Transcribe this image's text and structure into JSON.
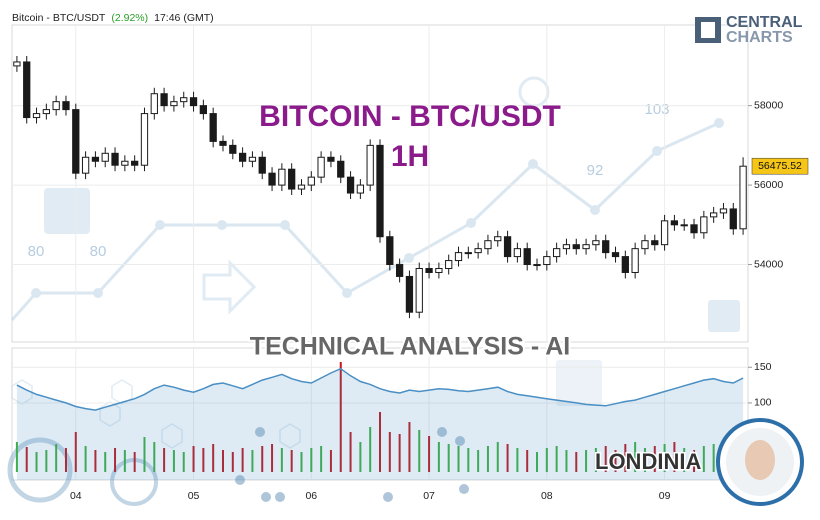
{
  "header": {
    "symbol": "Bitcoin - BTC/USDT",
    "change": "(2.92%)",
    "time": "17:46 (GMT)"
  },
  "logo": {
    "line1": "CENTRAL",
    "line2": "CHARTS"
  },
  "watermark": {
    "title": "BITCOIN - BTC/USDT",
    "timeframe": "1H",
    "subtitle": "TECHNICAL  ANALYSIS - AI",
    "scores": [
      "80",
      "80",
      "92",
      "103"
    ],
    "brand": "LONDINIA"
  },
  "chart_data": {
    "type": "candlestick",
    "categories": [
      null,
      null,
      null,
      null,
      null,
      null,
      "04",
      null,
      null,
      null,
      null,
      null,
      null,
      null,
      null,
      null,
      null,
      null,
      "05",
      null,
      null,
      null,
      null,
      null,
      null,
      null,
      null,
      null,
      null,
      null,
      "06",
      null,
      null,
      null,
      null,
      null,
      null,
      null,
      null,
      null,
      null,
      null,
      "07",
      null,
      null,
      null,
      null,
      null,
      null,
      null,
      null,
      null,
      null,
      null,
      "08",
      null,
      null,
      null,
      null,
      null,
      null,
      null,
      null,
      null,
      null,
      null,
      "09",
      null,
      null,
      null,
      null,
      null,
      null,
      null,
      null
    ],
    "open": [
      59000,
      59100,
      57700,
      57800,
      57900,
      58100,
      57900,
      56300,
      56700,
      56600,
      56800,
      56500,
      56600,
      56500,
      57800,
      58300,
      58000,
      58100,
      58200,
      58000,
      57800,
      57100,
      57000,
      56800,
      56600,
      56700,
      56300,
      56000,
      56400,
      55900,
      56000,
      56200,
      56700,
      56600,
      56200,
      55800,
      56000,
      57000,
      54700,
      54000,
      53700,
      52800,
      53900,
      53800,
      53900,
      54100,
      54300,
      54300,
      54400,
      54600,
      54700,
      54200,
      54400,
      54000,
      54000,
      54200,
      54400,
      54500,
      54400,
      54500,
      54600,
      54300,
      54200,
      53800,
      54400,
      54600,
      54500,
      55100,
      55000,
      55000,
      54800,
      55200,
      55300,
      55400,
      54900
    ],
    "high": [
      59250,
      59250,
      57950,
      58050,
      58250,
      58250,
      58050,
      56850,
      56850,
      56950,
      56950,
      56750,
      56750,
      57950,
      58450,
      58450,
      58250,
      58350,
      58350,
      58150,
      57950,
      57250,
      57150,
      56950,
      56850,
      56850,
      56450,
      56550,
      56550,
      56150,
      56350,
      56850,
      56850,
      56750,
      56350,
      56150,
      57150,
      57150,
      54850,
      54150,
      53850,
      54050,
      54050,
      54050,
      54250,
      54450,
      54450,
      54550,
      54750,
      54850,
      54850,
      54550,
      54550,
      54150,
      54350,
      54550,
      54650,
      54650,
      54650,
      54750,
      54750,
      54450,
      54350,
      54550,
      54750,
      54750,
      55250,
      55250,
      55150,
      55150,
      55350,
      55450,
      55550,
      55550,
      56700
    ],
    "low": [
      58850,
      57550,
      57550,
      57650,
      57750,
      57750,
      56150,
      56150,
      56450,
      56450,
      56350,
      56350,
      56350,
      56350,
      57650,
      57850,
      57850,
      57950,
      57850,
      57650,
      56950,
      56850,
      56650,
      56450,
      56450,
      56150,
      55850,
      55850,
      55750,
      55750,
      55850,
      56050,
      56450,
      56050,
      55650,
      55650,
      55850,
      54550,
      53850,
      53550,
      52650,
      52650,
      53650,
      53650,
      53750,
      53950,
      54150,
      54150,
      54250,
      54450,
      54050,
      54050,
      53850,
      53850,
      53850,
      54050,
      54250,
      54250,
      54250,
      54350,
      54150,
      54050,
      53650,
      53650,
      54250,
      54350,
      54350,
      54850,
      54850,
      54650,
      54650,
      55050,
      55150,
      54750,
      54750
    ],
    "close": [
      59100,
      57700,
      57800,
      57900,
      58100,
      57900,
      56300,
      56700,
      56600,
      56800,
      56500,
      56600,
      56500,
      57800,
      58300,
      58000,
      58100,
      58200,
      58000,
      57800,
      57100,
      57000,
      56800,
      56600,
      56700,
      56300,
      56000,
      56400,
      55900,
      56000,
      56200,
      56700,
      56600,
      56200,
      55800,
      56000,
      57000,
      54700,
      54000,
      53700,
      52800,
      53900,
      53800,
      53900,
      54100,
      54300,
      54300,
      54400,
      54600,
      54700,
      54200,
      54400,
      54000,
      54000,
      54200,
      54400,
      54500,
      54400,
      54500,
      54600,
      54300,
      54200,
      53800,
      54400,
      54600,
      54500,
      55100,
      55000,
      55000,
      54800,
      55200,
      55300,
      55400,
      54900,
      56475.52
    ],
    "ylim": [
      52050,
      60030
    ],
    "yticks": [
      54000,
      56000,
      58000
    ],
    "last_price": 56475.52,
    "grid": true,
    "up_color": "#ffffff",
    "down_color": "#1a1a1a",
    "indicator": {
      "values": [
        125,
        118,
        112,
        108,
        104,
        100,
        95,
        92,
        90,
        94,
        98,
        102,
        106,
        112,
        120,
        125,
        122,
        118,
        115,
        120,
        126,
        128,
        124,
        120,
        126,
        132,
        136,
        140,
        134,
        130,
        128,
        135,
        142,
        148,
        138,
        130,
        126,
        120,
        116,
        114,
        118,
        116,
        118,
        120,
        119,
        117,
        116,
        118,
        120,
        122,
        116,
        112,
        110,
        108,
        106,
        104,
        102,
        100,
        98,
        97,
        96,
        99,
        102,
        104,
        108,
        112,
        116,
        120,
        124,
        128,
        132,
        134,
        130,
        128,
        135
      ],
      "color": "#4a8fc4",
      "ylim": [
        -8,
        177
      ],
      "yticks": [
        100,
        150
      ]
    },
    "volume": {
      "values": [
        30,
        25,
        20,
        22,
        28,
        24,
        40,
        26,
        22,
        20,
        24,
        22,
        20,
        35,
        30,
        24,
        22,
        20,
        26,
        24,
        28,
        22,
        20,
        24,
        22,
        26,
        28,
        24,
        22,
        20,
        24,
        26,
        22,
        110,
        40,
        30,
        45,
        60,
        40,
        38,
        50,
        42,
        36,
        30,
        28,
        26,
        24,
        22,
        26,
        30,
        28,
        24,
        22,
        20,
        24,
        26,
        22,
        20,
        22,
        24,
        26,
        22,
        28,
        30,
        24,
        26,
        28,
        30,
        24,
        22,
        26,
        28,
        30,
        32,
        45
      ],
      "up_color": "#3cb043",
      "down_color": "#c0181f"
    }
  }
}
